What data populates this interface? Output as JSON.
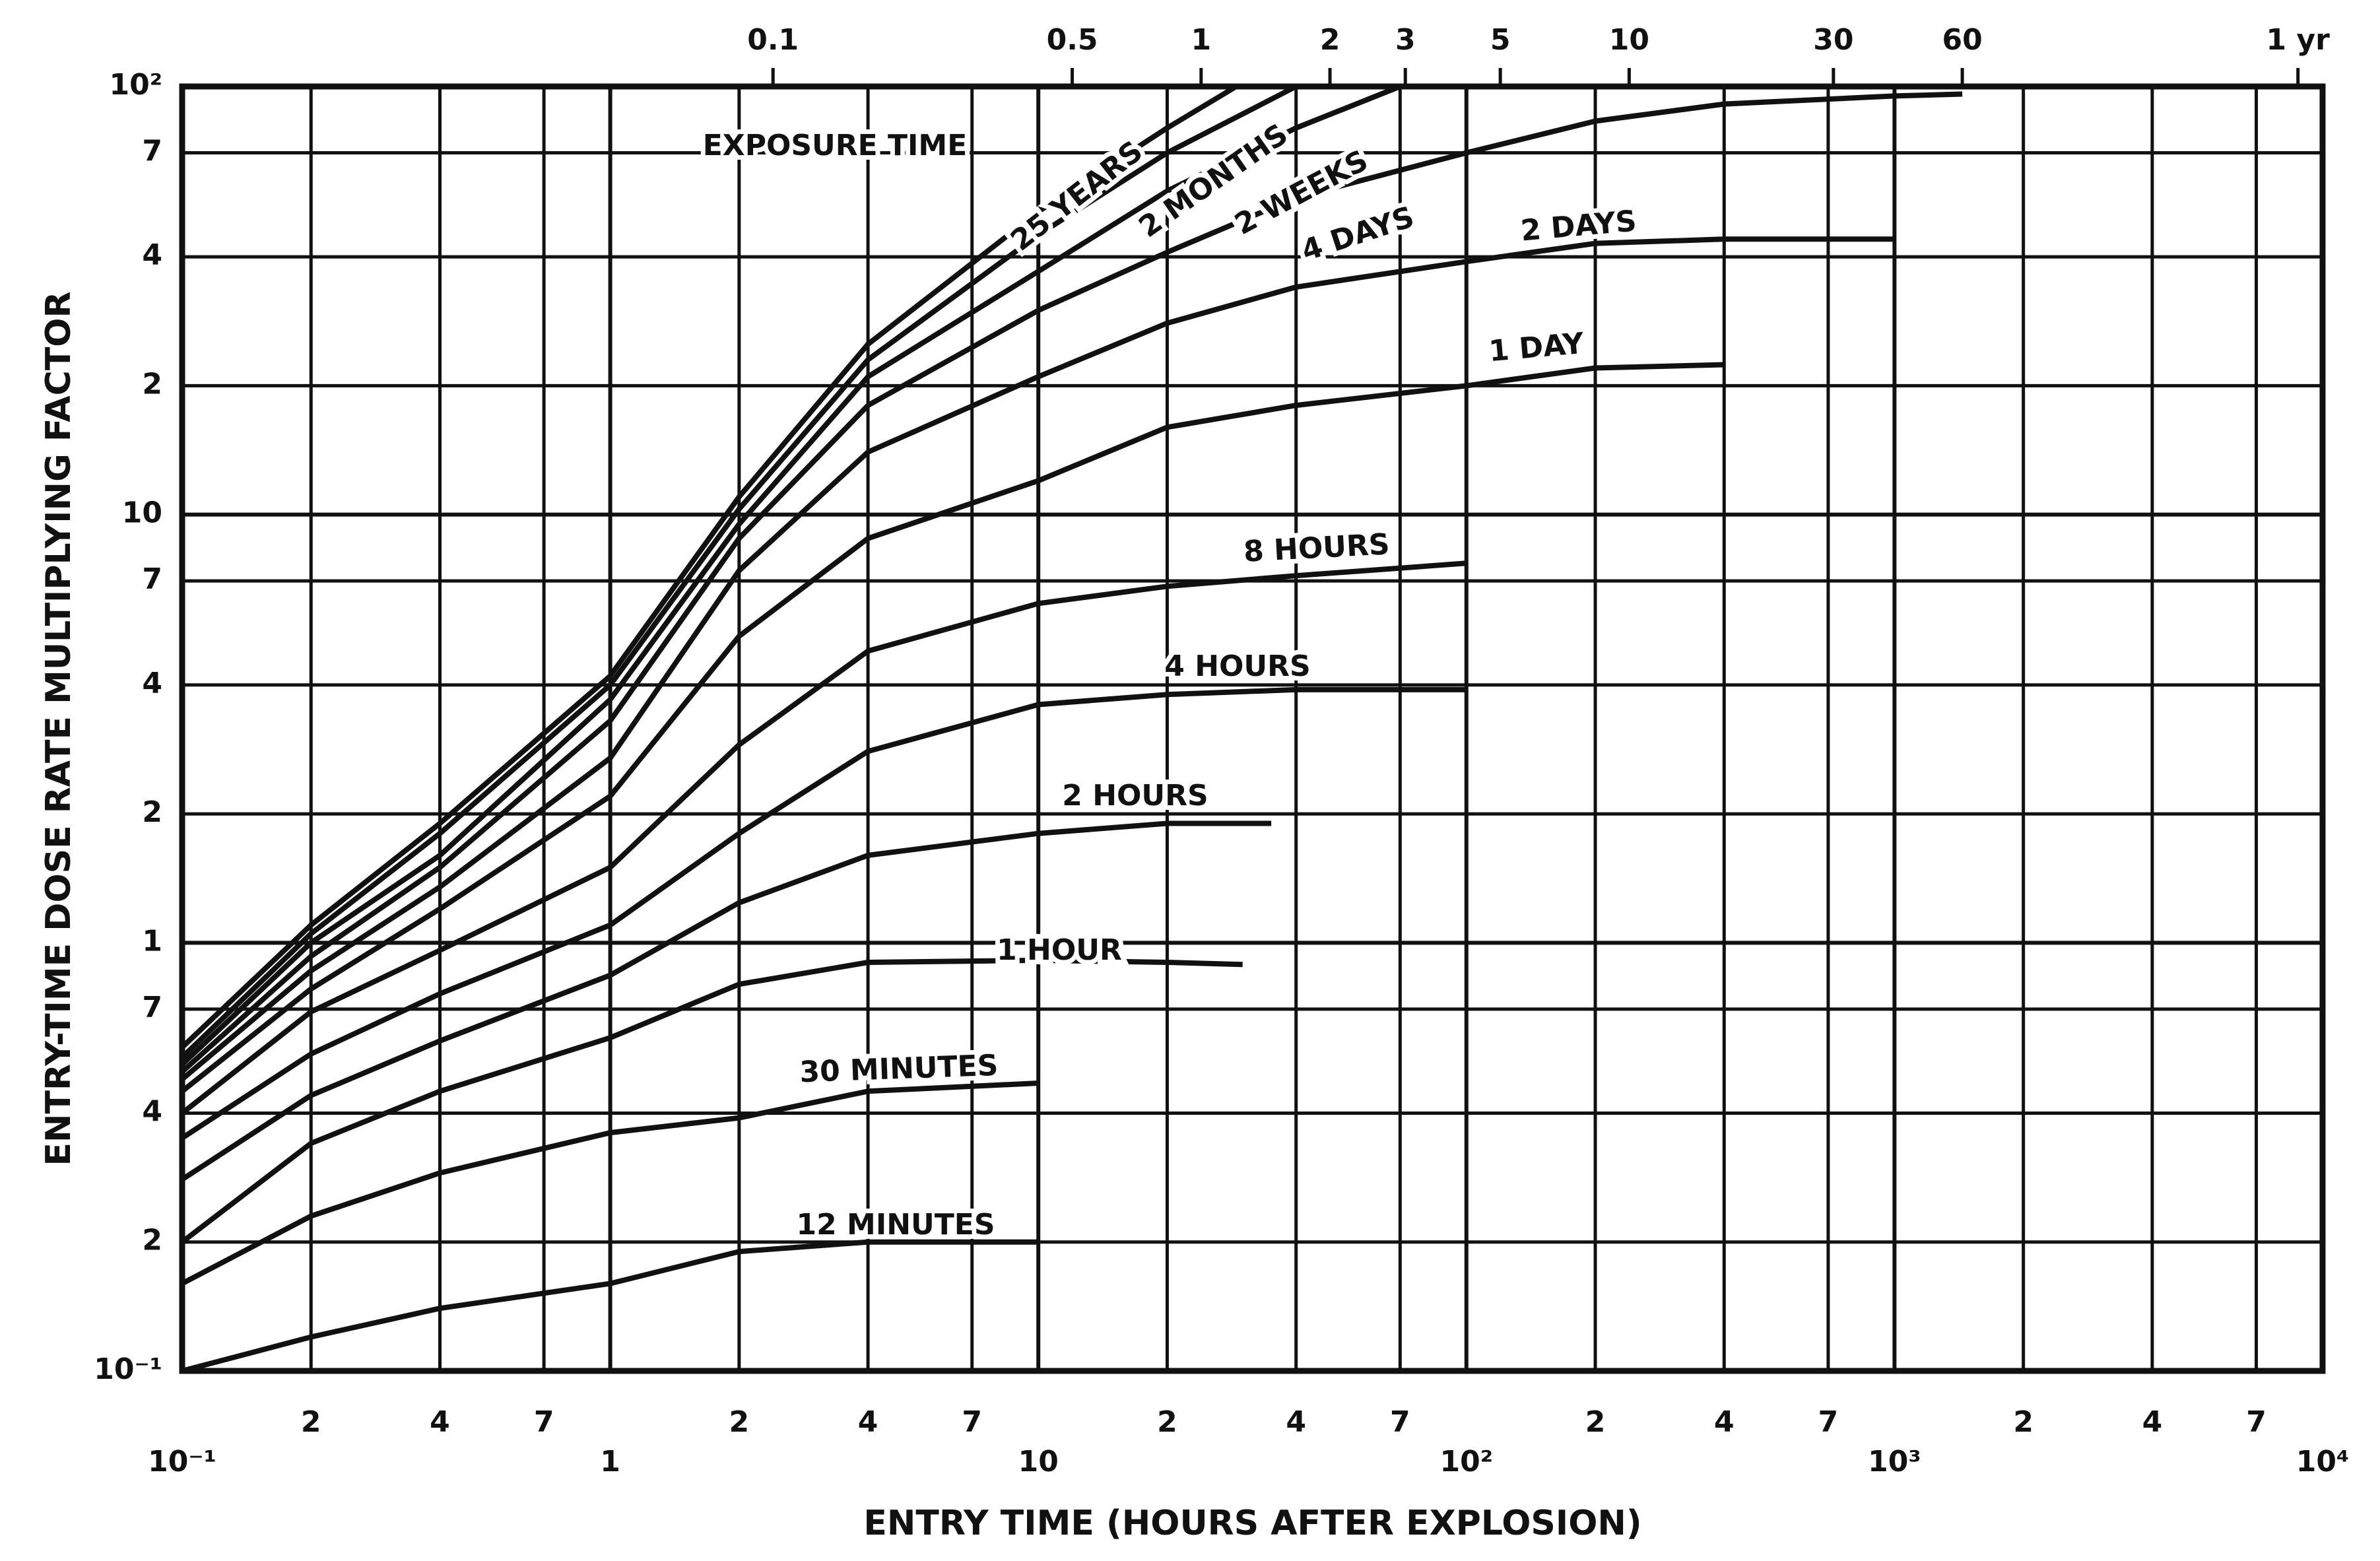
{
  "chart_data": {
    "type": "line",
    "xlabel": "ENTRY TIME (HOURS AFTER EXPLOSION)",
    "ylabel": "ENTRY-TIME DOSE RATE MULTIPLYING FACTOR",
    "annotation": "EXPOSURE TIME",
    "log_x": true,
    "log_y": true,
    "grid": true,
    "color": "#111111",
    "xlim": [
      0.1,
      10000
    ],
    "ylim": [
      0.1,
      100
    ],
    "xticks": [
      {
        "value": 0.1,
        "label": "10⁻¹"
      },
      {
        "value": 0.2,
        "label": "2"
      },
      {
        "value": 0.4,
        "label": "4"
      },
      {
        "value": 0.7,
        "label": "7"
      },
      1,
      2,
      4,
      7,
      10,
      {
        "value": 20,
        "label": "2"
      },
      {
        "value": 40,
        "label": "4"
      },
      {
        "value": 70,
        "label": "7"
      },
      {
        "value": 100,
        "label": "10²"
      },
      {
        "value": 200,
        "label": "2"
      },
      {
        "value": 400,
        "label": "4"
      },
      {
        "value": 700,
        "label": "7"
      },
      {
        "value": 1000,
        "label": "10³"
      },
      {
        "value": 2000,
        "label": "2"
      },
      {
        "value": 4000,
        "label": "4"
      },
      {
        "value": 7000,
        "label": "7"
      },
      {
        "value": 10000,
        "label": "10⁴"
      }
    ],
    "yticks": [
      {
        "value": 0.1,
        "label": "10⁻¹"
      },
      {
        "value": 0.2,
        "label": "2"
      },
      {
        "value": 0.4,
        "label": "4"
      },
      {
        "value": 0.7,
        "label": "7"
      },
      1,
      2,
      4,
      7,
      10,
      {
        "value": 20,
        "label": "2"
      },
      {
        "value": 40,
        "label": "4"
      },
      {
        "value": 70,
        "label": "7"
      },
      {
        "value": 100,
        "label": "10²"
      }
    ],
    "x2ticks": [
      {
        "value": 2.4,
        "label": "0.1"
      },
      {
        "value": 12,
        "label": "0.5"
      },
      {
        "value": 24,
        "label": "1"
      },
      {
        "value": 48,
        "label": "2"
      },
      {
        "value": 72,
        "label": "3"
      },
      {
        "value": 120,
        "label": "5"
      },
      {
        "value": 240,
        "label": "10"
      },
      {
        "value": 720,
        "label": "30"
      },
      {
        "value": 1440,
        "label": "60"
      },
      {
        "value": 8760,
        "label": "1 yr"
      }
    ],
    "series": [
      {
        "name": "25 YEARS",
        "x": [
          0.1,
          0.2,
          0.4,
          1,
          2,
          4,
          10,
          20,
          29
        ],
        "values": [
          0.57,
          1.1,
          1.9,
          4.2,
          11,
          25,
          51,
          80,
          100
        ]
      },
      {
        "name": "2 MONTHS",
        "x": [
          0.1,
          0.2,
          0.4,
          1,
          2,
          4,
          10,
          20,
          40
        ],
        "values": [
          0.54,
          1.05,
          1.8,
          4.0,
          10.3,
          23,
          45,
          70,
          100
        ]
      },
      {
        "name": "2 WEEKS",
        "x": [
          0.1,
          0.2,
          0.4,
          1,
          2,
          4,
          10,
          20,
          40,
          70
        ],
        "values": [
          0.52,
          1.0,
          1.6,
          3.7,
          9.5,
          21,
          37,
          57,
          80,
          100
        ]
      },
      {
        "name": "4 DAYS",
        "x": [
          0.1,
          0.2,
          0.4,
          1,
          2,
          4,
          10,
          20,
          40,
          100,
          200,
          400,
          1000,
          1440
        ],
        "values": [
          0.5,
          0.93,
          1.5,
          3.3,
          8.8,
          18,
          30,
          41,
          55,
          70,
          83,
          91,
          95,
          96
        ]
      },
      {
        "name": "2 DAYS",
        "x": [
          0.1,
          0.2,
          0.4,
          1,
          2,
          4,
          10,
          20,
          40,
          100,
          200,
          400,
          1000
        ],
        "values": [
          0.48,
          0.86,
          1.35,
          2.7,
          7.4,
          14,
          21,
          28,
          34,
          39,
          43,
          44,
          44
        ]
      },
      {
        "name": "1 DAY",
        "x": [
          0.1,
          0.2,
          0.4,
          1,
          2,
          4,
          10,
          20,
          40,
          100,
          200,
          400
        ],
        "values": [
          0.45,
          0.78,
          1.2,
          2.2,
          5.2,
          8.8,
          12,
          16,
          18,
          20,
          22,
          22.4
        ]
      },
      {
        "name": "8 HOURS",
        "x": [
          0.1,
          0.2,
          0.4,
          1,
          2,
          4,
          10,
          20,
          40,
          100
        ],
        "values": [
          0.4,
          0.69,
          0.96,
          1.5,
          2.9,
          4.8,
          6.2,
          6.8,
          7.2,
          7.7
        ]
      },
      {
        "name": "4 HOURS",
        "x": [
          0.1,
          0.2,
          0.4,
          1,
          2,
          4,
          10,
          20,
          40,
          100
        ],
        "values": [
          0.35,
          0.55,
          0.76,
          1.1,
          1.8,
          2.8,
          3.6,
          3.8,
          3.9,
          3.9
        ]
      },
      {
        "name": "2 HOURS",
        "x": [
          0.1,
          0.2,
          0.4,
          1,
          2,
          4,
          10,
          20,
          35
        ],
        "values": [
          0.28,
          0.44,
          0.59,
          0.84,
          1.24,
          1.6,
          1.8,
          1.9,
          1.9
        ]
      },
      {
        "name": "1 HOUR",
        "x": [
          0.1,
          0.2,
          0.4,
          1,
          2,
          4,
          10,
          20,
          30
        ],
        "values": [
          0.2,
          0.34,
          0.45,
          0.6,
          0.8,
          0.9,
          0.91,
          0.9,
          0.89
        ]
      },
      {
        "name": "30 MINUTES",
        "x": [
          0.1,
          0.2,
          0.4,
          1,
          2,
          4,
          10
        ],
        "values": [
          0.16,
          0.23,
          0.29,
          0.36,
          0.39,
          0.45,
          0.47
        ]
      },
      {
        "name": "12 MINUTES",
        "x": [
          0.1,
          0.2,
          0.4,
          1,
          2,
          4,
          10
        ],
        "values": [
          0.1,
          0.12,
          0.14,
          0.16,
          0.19,
          0.2,
          0.2
        ]
      }
    ]
  }
}
